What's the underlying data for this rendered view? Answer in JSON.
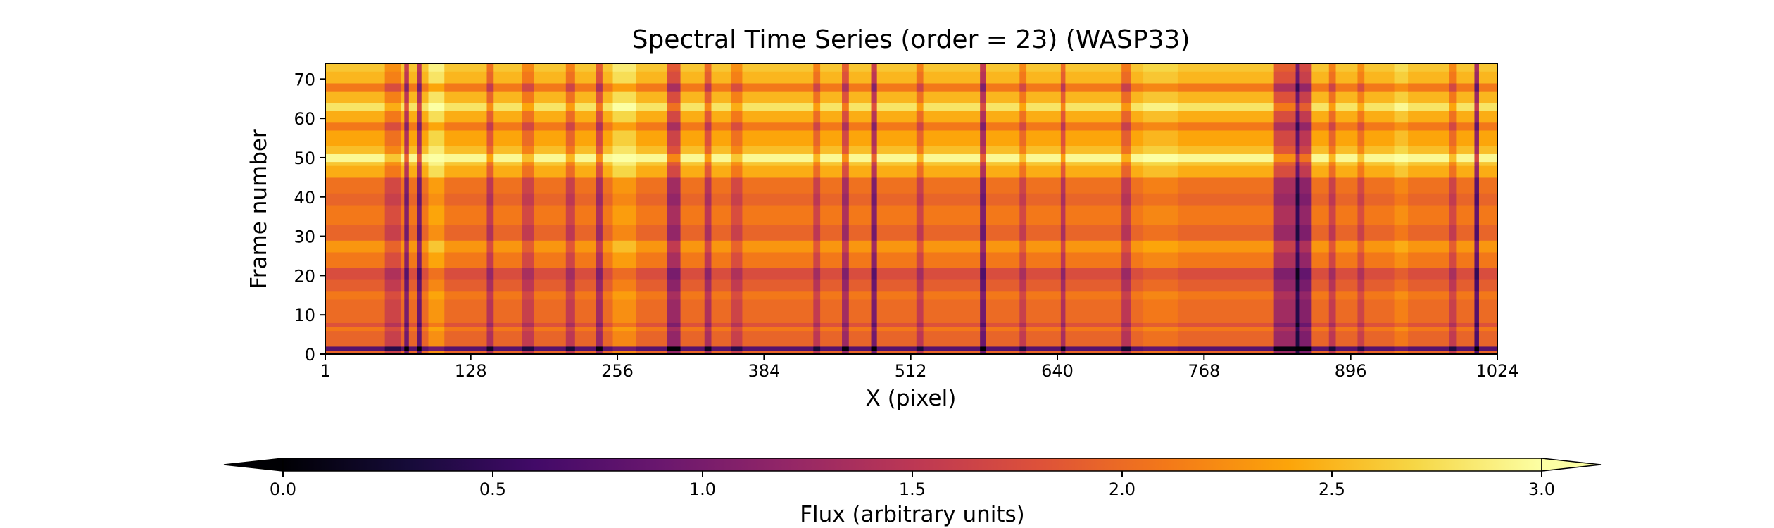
{
  "chart_data": {
    "type": "heatmap",
    "title": "Spectral Time Series (order = 23) (WASP33)",
    "xlabel": "X (pixel)",
    "ylabel": "Frame number",
    "xlim": [
      1,
      1024
    ],
    "ylim": [
      0,
      74
    ],
    "x_ticks": [
      1,
      128,
      256,
      384,
      512,
      640,
      768,
      896,
      1024
    ],
    "y_ticks": [
      0,
      10,
      20,
      30,
      40,
      50,
      60,
      70
    ],
    "colormap": "inferno",
    "colorbar": {
      "label": "Flux (arbitrary units)",
      "range": [
        0.0,
        3.0
      ],
      "ticks": [
        0.0,
        0.5,
        1.0,
        1.5,
        2.0,
        2.5,
        3.0
      ],
      "tick_labels": [
        "0.0",
        "0.5",
        "1.0",
        "1.5",
        "2.0",
        "2.5",
        "3.0"
      ],
      "extend": "both",
      "orientation": "horizontal",
      "placement": "bottom"
    },
    "baseline_flux": 2.15,
    "row_offsets": [
      {
        "frames": [
          0,
          1
        ],
        "flux_offset": -0.2
      },
      {
        "frames": [
          1,
          2
        ],
        "flux_offset": -1.4
      },
      {
        "frames": [
          2,
          6
        ],
        "flux_offset": -0.2
      },
      {
        "frames": [
          6,
          7
        ],
        "flux_offset": -0.05
      },
      {
        "frames": [
          7,
          8
        ],
        "flux_offset": -0.35
      },
      {
        "frames": [
          8,
          14
        ],
        "flux_offset": -0.15
      },
      {
        "frames": [
          14,
          16
        ],
        "flux_offset": -0.05
      },
      {
        "frames": [
          16,
          19
        ],
        "flux_offset": -0.25
      },
      {
        "frames": [
          19,
          22
        ],
        "flux_offset": -0.4
      },
      {
        "frames": [
          22,
          26
        ],
        "flux_offset": -0.05
      },
      {
        "frames": [
          26,
          29
        ],
        "flux_offset": 0.15
      },
      {
        "frames": [
          29,
          33
        ],
        "flux_offset": -0.2
      },
      {
        "frames": [
          33,
          38
        ],
        "flux_offset": -0.05
      },
      {
        "frames": [
          38,
          41
        ],
        "flux_offset": -0.2
      },
      {
        "frames": [
          41,
          45
        ],
        "flux_offset": -0.1
      },
      {
        "frames": [
          45,
          48
        ],
        "flux_offset": 0.3
      },
      {
        "frames": [
          48,
          49
        ],
        "flux_offset": 0.45
      },
      {
        "frames": [
          49,
          51
        ],
        "flux_offset": 0.8
      },
      {
        "frames": [
          51,
          53
        ],
        "flux_offset": 0.4
      },
      {
        "frames": [
          53,
          57
        ],
        "flux_offset": 0.25
      },
      {
        "frames": [
          57,
          59
        ],
        "flux_offset": -0.05
      },
      {
        "frames": [
          59,
          62
        ],
        "flux_offset": 0.3
      },
      {
        "frames": [
          62,
          64
        ],
        "flux_offset": 0.65
      },
      {
        "frames": [
          64,
          67
        ],
        "flux_offset": 0.35
      },
      {
        "frames": [
          67,
          69
        ],
        "flux_offset": -0.05
      },
      {
        "frames": [
          69,
          72
        ],
        "flux_offset": 0.35
      },
      {
        "frames": [
          72,
          74
        ],
        "flux_offset": 0.45
      }
    ],
    "column_offsets": [
      {
        "x": 60,
        "width": 14,
        "flux_offset": -0.35
      },
      {
        "x": 72,
        "width": 4,
        "flux_offset": -1.0
      },
      {
        "x": 83,
        "width": 4,
        "flux_offset": -1.1
      },
      {
        "x": 98,
        "width": 14,
        "flux_offset": 0.3
      },
      {
        "x": 145,
        "width": 6,
        "flux_offset": -0.55
      },
      {
        "x": 178,
        "width": 10,
        "flux_offset": -0.4
      },
      {
        "x": 215,
        "width": 8,
        "flux_offset": -0.45
      },
      {
        "x": 240,
        "width": 6,
        "flux_offset": -0.7
      },
      {
        "x": 262,
        "width": 20,
        "flux_offset": 0.25
      },
      {
        "x": 305,
        "width": 12,
        "flux_offset": -0.75
      },
      {
        "x": 335,
        "width": 6,
        "flux_offset": -0.6
      },
      {
        "x": 360,
        "width": 10,
        "flux_offset": -0.35
      },
      {
        "x": 430,
        "width": 6,
        "flux_offset": -0.45
      },
      {
        "x": 455,
        "width": 6,
        "flux_offset": -0.7
      },
      {
        "x": 480,
        "width": 5,
        "flux_offset": -1.0
      },
      {
        "x": 520,
        "width": 6,
        "flux_offset": -0.45
      },
      {
        "x": 575,
        "width": 5,
        "flux_offset": -1.05
      },
      {
        "x": 610,
        "width": 6,
        "flux_offset": -0.4
      },
      {
        "x": 645,
        "width": 4,
        "flux_offset": -0.6
      },
      {
        "x": 700,
        "width": 8,
        "flux_offset": -0.5
      },
      {
        "x": 730,
        "width": 30,
        "flux_offset": 0.1
      },
      {
        "x": 840,
        "width": 22,
        "flux_offset": -0.7
      },
      {
        "x": 855,
        "width": 14,
        "flux_offset": -0.9
      },
      {
        "x": 880,
        "width": 6,
        "flux_offset": -0.45
      },
      {
        "x": 905,
        "width": 6,
        "flux_offset": -0.35
      },
      {
        "x": 940,
        "width": 12,
        "flux_offset": 0.15
      },
      {
        "x": 985,
        "width": 6,
        "flux_offset": -0.4
      },
      {
        "x": 1006,
        "width": 4,
        "flux_offset": -1.25
      }
    ]
  }
}
